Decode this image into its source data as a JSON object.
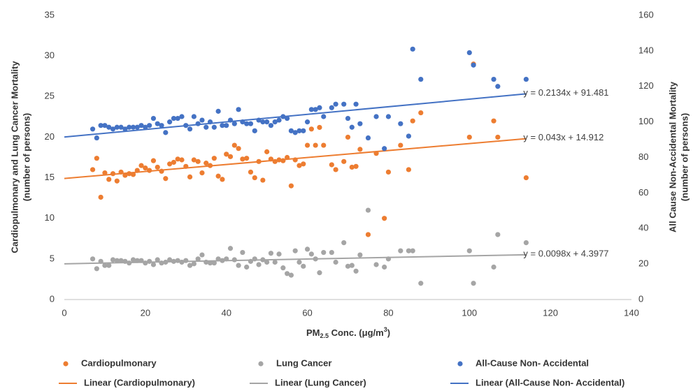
{
  "chart_data": {
    "type": "scatter",
    "x_label": {
      "main": "PM",
      "sub": "2.5",
      "mid": " Conc. (μg/m",
      "sup": "3",
      "end": ")"
    },
    "y_label": [
      "Cardiopulmonary and Lung Cancer Mortality",
      "(number of persons)"
    ],
    "y2_label": [
      "All Cause Non-Accidental Mortality",
      "(number of persons)"
    ],
    "xlim": [
      0,
      140
    ],
    "xticks": [
      0,
      20,
      40,
      60,
      80,
      100,
      120,
      140
    ],
    "ylim": [
      0,
      35
    ],
    "yticks": [
      0,
      5,
      10,
      15,
      20,
      25,
      30,
      35
    ],
    "y2lim": [
      0,
      160
    ],
    "y2ticks": [
      0,
      20,
      40,
      60,
      80,
      100,
      120,
      140,
      160
    ],
    "x": [
      7,
      8,
      9,
      10,
      11,
      12,
      13,
      14,
      15,
      16,
      17,
      18,
      19,
      20,
      21,
      22,
      23,
      24,
      25,
      26,
      27,
      28,
      29,
      30,
      31,
      32,
      33,
      34,
      35,
      36,
      37,
      38,
      39,
      40,
      41,
      42,
      43,
      44,
      45,
      46,
      47,
      48,
      49,
      50,
      51,
      52,
      53,
      54,
      55,
      56,
      57,
      58,
      59,
      60,
      61,
      62,
      63,
      64,
      66,
      67,
      69,
      70,
      71,
      72,
      73,
      75,
      77,
      79,
      80,
      83,
      85,
      86,
      88,
      100,
      101,
      106,
      107,
      114
    ],
    "series": [
      {
        "name": "Cardiopulmonary",
        "color": "#ed7d31",
        "axis": "y",
        "values": [
          16,
          17.4,
          12.6,
          15.6,
          14.8,
          15.5,
          14.6,
          15.7,
          15.3,
          15.5,
          15.4,
          15.9,
          16.5,
          16.2,
          15.9,
          17.1,
          16.3,
          15.8,
          14.9,
          16.7,
          16.9,
          17.3,
          17.2,
          16.4,
          15.1,
          17.2,
          17.0,
          15.6,
          16.8,
          16.5,
          17.4,
          15.2,
          14.8,
          17.9,
          17.6,
          19.0,
          18.6,
          17.3,
          17.4,
          15.7,
          15.0,
          17.0,
          14.7,
          18.2,
          17.3,
          17.0,
          17.2,
          17.1,
          17.5,
          14.0,
          17.2,
          16.5,
          16.7,
          19.0,
          21.0,
          19.0,
          21.2,
          19.0,
          16.6,
          16.0,
          17.0,
          20.0,
          16.3,
          16.4,
          18.5,
          8.0,
          18.0,
          10.0,
          15.7,
          19.0,
          16.0,
          22.0,
          23.0,
          20.0,
          29.0,
          22.0,
          20.0,
          15.0
        ]
      },
      {
        "name": "Lung Cancer",
        "color": "#a5a5a5",
        "axis": "y",
        "values": [
          5.0,
          3.8,
          4.7,
          4.2,
          4.2,
          4.9,
          4.8,
          4.8,
          4.7,
          4.5,
          4.9,
          4.8,
          4.8,
          4.5,
          4.7,
          4.3,
          4.9,
          4.5,
          4.6,
          4.9,
          4.7,
          4.8,
          4.6,
          4.8,
          4.2,
          4.4,
          5.0,
          5.5,
          4.6,
          4.5,
          4.5,
          5.0,
          4.8,
          5.0,
          6.3,
          4.9,
          4.2,
          5.8,
          4.0,
          4.7,
          5.0,
          4.3,
          4.9,
          4.6,
          5.7,
          4.6,
          5.6,
          3.9,
          3.2,
          3.0,
          6.0,
          4.6,
          4.1,
          6.2,
          5.6,
          5.0,
          3.3,
          5.8,
          5.8,
          4.6,
          7.0,
          4.1,
          4.2,
          3.5,
          5.5,
          11.0,
          4.3,
          4.0,
          5.0,
          6.0,
          6.0,
          6.0,
          2.0,
          6.0,
          2.0,
          4.0,
          8.0,
          7.0
        ]
      },
      {
        "name": "All-Cause Non- Accidental",
        "color": "#4472c4",
        "axis": "y2",
        "values": [
          96,
          91,
          98,
          98,
          97,
          96,
          97,
          97,
          96,
          97,
          97,
          97,
          98,
          97,
          98,
          102,
          99,
          98,
          94,
          100,
          102,
          102,
          103,
          98,
          96,
          103,
          99,
          101,
          97,
          100,
          97,
          106,
          98,
          98,
          101,
          99,
          107,
          100,
          99,
          99,
          95,
          101,
          100,
          100,
          98,
          100,
          101,
          103,
          102,
          95,
          94,
          95,
          95,
          100,
          107,
          107,
          108,
          103,
          108,
          110,
          110,
          102,
          97,
          110,
          99,
          91,
          103,
          85,
          103,
          99,
          92,
          141,
          124,
          139,
          132,
          124,
          120,
          124
        ]
      }
    ],
    "trendlines": [
      {
        "name": "Linear (Cardiopulmonary)",
        "color": "#ed7d31",
        "axis": "y",
        "slope": 0.043,
        "intercept": 14.912,
        "equation": "y = 0.043x + 14.912"
      },
      {
        "name": "Linear (Lung Cancer)",
        "color": "#a5a5a5",
        "axis": "y",
        "slope": 0.0098,
        "intercept": 4.3977,
        "equation": "y = 0.0098x + 4.3977"
      },
      {
        "name": "Linear (All-Cause Non- Accidental)",
        "color": "#4472c4",
        "axis": "y2",
        "slope": 0.2134,
        "intercept": 91.481,
        "equation": "y = 0.2134x + 91.481"
      }
    ]
  }
}
